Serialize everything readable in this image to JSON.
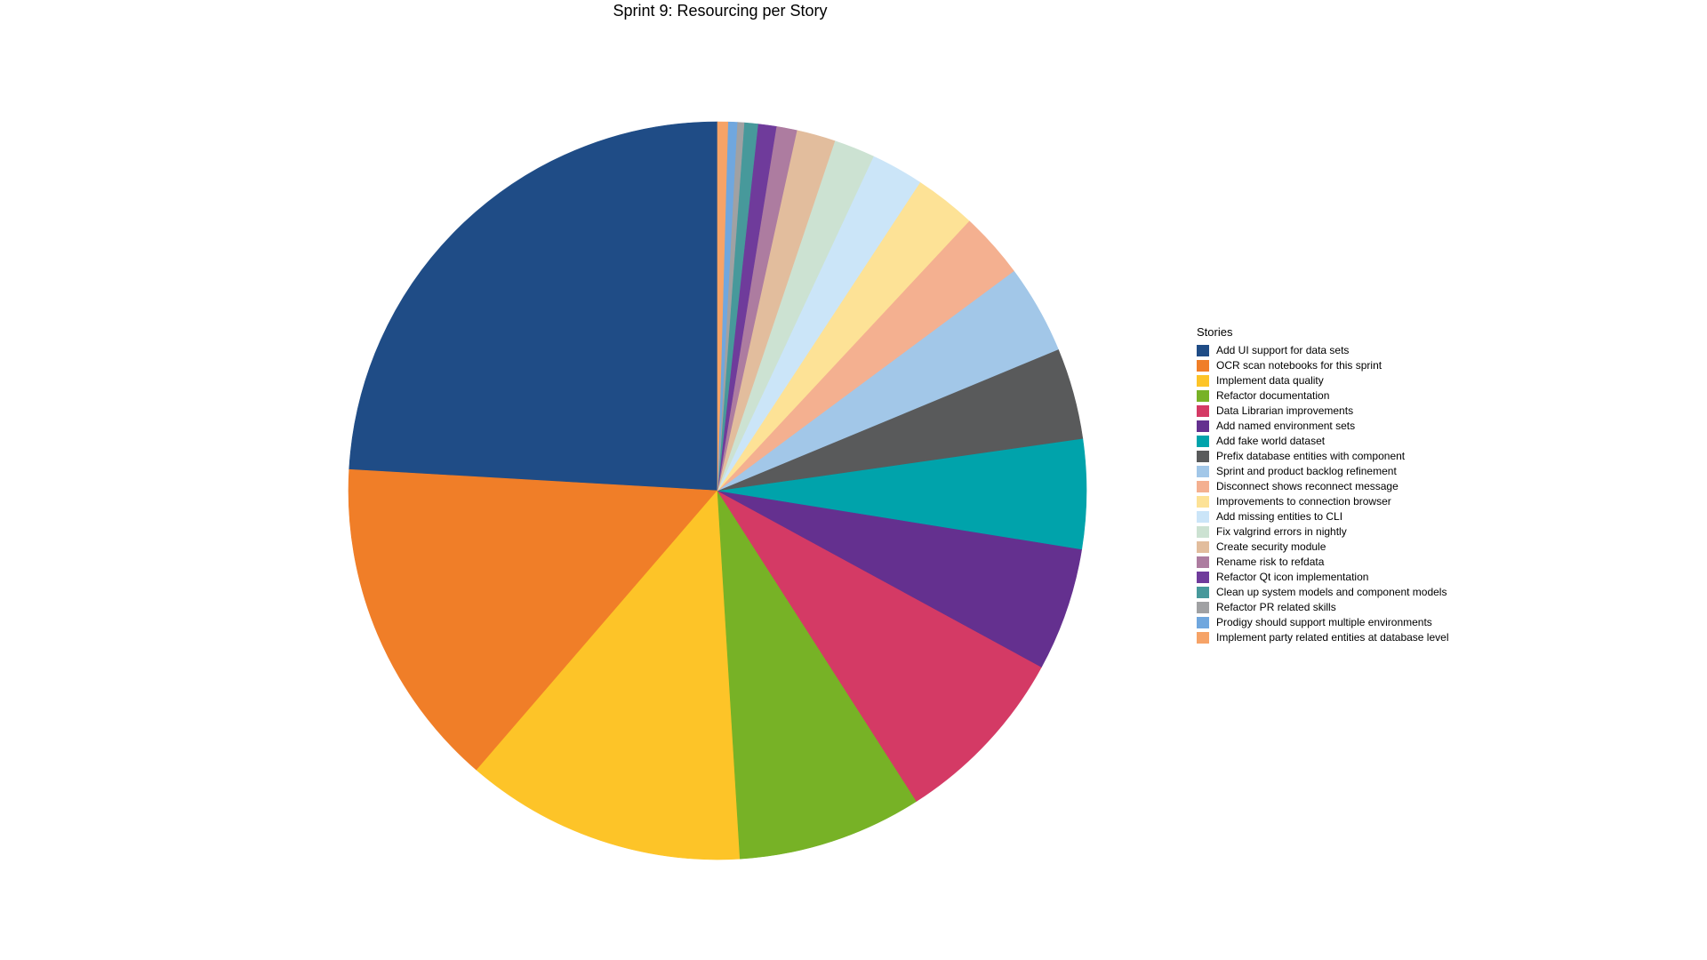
{
  "title": "Sprint 9: Resourcing per Story",
  "legend": {
    "title": "Stories"
  },
  "chart_data": {
    "type": "pie",
    "title": "Sprint 9: Resourcing per Story",
    "legend_title": "Stories",
    "legend_position": "right",
    "start_angle_deg": 90,
    "direction": "counterclockwise",
    "values_unit": "percent of total sprint resourcing (estimated from slice arc angles)",
    "slices": [
      {
        "label": "Add UI support for data sets",
        "value_pct": 24.1,
        "color": "#1F4C86"
      },
      {
        "label": "OCR scan notebooks for this sprint",
        "value_pct": 14.6,
        "color": "#F07E28"
      },
      {
        "label": "Implement data quality",
        "value_pct": 12.3,
        "color": "#FDC428"
      },
      {
        "label": "Refactor documentation",
        "value_pct": 8.1,
        "color": "#77B226"
      },
      {
        "label": "Data Librarian improvements",
        "value_pct": 8.0,
        "color": "#D43A65"
      },
      {
        "label": "Add named environment sets",
        "value_pct": 5.4,
        "color": "#64308F"
      },
      {
        "label": "Add fake world dataset",
        "value_pct": 4.8,
        "color": "#00A3AB"
      },
      {
        "label": "Prefix database entities with component",
        "value_pct": 4.0,
        "color": "#595A5B"
      },
      {
        "label": "Sprint and product backlog refinement",
        "value_pct": 3.9,
        "color": "#A2C7E8"
      },
      {
        "label": "Disconnect shows reconnect message",
        "value_pct": 2.9,
        "color": "#F4B090"
      },
      {
        "label": "Improvements to connection browser",
        "value_pct": 2.7,
        "color": "#FDE296"
      },
      {
        "label": "Add missing entities to CLI",
        "value_pct": 2.3,
        "color": "#CBE5F8"
      },
      {
        "label": "Fix valgrind errors in nightly",
        "value_pct": 1.8,
        "color": "#CCE2D2"
      },
      {
        "label": "Create security module",
        "value_pct": 1.7,
        "color": "#E2BD9D"
      },
      {
        "label": "Rename risk to refdata",
        "value_pct": 0.9,
        "color": "#AD7CA0"
      },
      {
        "label": "Refactor Qt icon implementation",
        "value_pct": 0.8,
        "color": "#6F3B9B"
      },
      {
        "label": "Clean up system models and component models",
        "value_pct": 0.6,
        "color": "#47999B"
      },
      {
        "label": "Refactor PR related skills",
        "value_pct": 0.3,
        "color": "#A0A1A3"
      },
      {
        "label": "Prodigy should support multiple environments",
        "value_pct": 0.4,
        "color": "#70A7DE"
      },
      {
        "label": "Implement party related entities at database level",
        "value_pct": 0.45,
        "color": "#F6A367"
      }
    ]
  }
}
